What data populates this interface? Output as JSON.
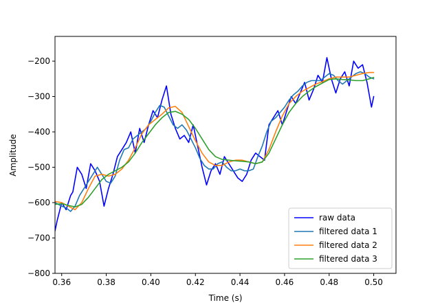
{
  "chart_data": {
    "type": "line",
    "xlabel": "Time (s)",
    "ylabel": "Amplitude",
    "xlim": [
      0.357,
      0.51
    ],
    "ylim": [
      -800,
      -130
    ],
    "x_ticks": [
      0.36,
      0.38,
      0.4,
      0.42,
      0.44,
      0.46,
      0.48,
      0.5
    ],
    "x_tick_labels": [
      "0.36",
      "0.38",
      "0.40",
      "0.42",
      "0.44",
      "0.46",
      "0.48",
      "0.50"
    ],
    "y_ticks": [
      -800,
      -700,
      -600,
      -500,
      -400,
      -300,
      -200
    ],
    "y_tick_labels": [
      "−800",
      "−700",
      "−600",
      "−500",
      "−400",
      "−300",
      "−200"
    ],
    "grid": false,
    "legend_position": "lower-right",
    "series": [
      {
        "name": "raw data",
        "color": "#0000ff",
        "x": [
          0.357,
          0.358,
          0.36,
          0.362,
          0.364,
          0.365,
          0.367,
          0.369,
          0.371,
          0.373,
          0.375,
          0.377,
          0.379,
          0.381,
          0.383,
          0.385,
          0.387,
          0.389,
          0.391,
          0.393,
          0.395,
          0.397,
          0.399,
          0.401,
          0.403,
          0.405,
          0.407,
          0.409,
          0.411,
          0.413,
          0.415,
          0.417,
          0.419,
          0.421,
          0.423,
          0.425,
          0.427,
          0.429,
          0.431,
          0.433,
          0.435,
          0.437,
          0.439,
          0.441,
          0.443,
          0.445,
          0.447,
          0.449,
          0.451,
          0.453,
          0.455,
          0.457,
          0.459,
          0.461,
          0.463,
          0.465,
          0.467,
          0.469,
          0.471,
          0.473,
          0.475,
          0.477,
          0.479,
          0.481,
          0.483,
          0.485,
          0.487,
          0.489,
          0.491,
          0.493,
          0.495,
          0.497,
          0.499,
          0.5
        ],
        "y": [
          -680,
          -650,
          -600,
          -620,
          -580,
          -570,
          -500,
          -520,
          -560,
          -490,
          -510,
          -540,
          -610,
          -560,
          -520,
          -470,
          -450,
          -430,
          -400,
          -460,
          -390,
          -430,
          -380,
          -340,
          -360,
          -310,
          -270,
          -350,
          -390,
          -420,
          -410,
          -430,
          -380,
          -440,
          -500,
          -550,
          -510,
          -490,
          -520,
          -470,
          -490,
          -510,
          -530,
          -540,
          -520,
          -480,
          -460,
          -470,
          -480,
          -380,
          -360,
          -340,
          -380,
          -340,
          -300,
          -320,
          -290,
          -260,
          -310,
          -280,
          -240,
          -260,
          -190,
          -250,
          -290,
          -250,
          -230,
          -270,
          -200,
          -220,
          -210,
          -260,
          -330,
          -300
        ]
      },
      {
        "name": "filtered data 1",
        "color": "#1f77b4",
        "x": [
          0.357,
          0.36,
          0.362,
          0.364,
          0.366,
          0.368,
          0.37,
          0.372,
          0.374,
          0.376,
          0.378,
          0.38,
          0.382,
          0.384,
          0.386,
          0.388,
          0.39,
          0.392,
          0.394,
          0.396,
          0.398,
          0.4,
          0.402,
          0.404,
          0.406,
          0.408,
          0.41,
          0.412,
          0.414,
          0.416,
          0.418,
          0.42,
          0.422,
          0.424,
          0.426,
          0.428,
          0.43,
          0.432,
          0.434,
          0.436,
          0.438,
          0.44,
          0.442,
          0.444,
          0.446,
          0.448,
          0.45,
          0.452,
          0.454,
          0.456,
          0.458,
          0.46,
          0.462,
          0.464,
          0.466,
          0.468,
          0.47,
          0.472,
          0.474,
          0.476,
          0.478,
          0.48,
          0.482,
          0.484,
          0.486,
          0.488,
          0.49,
          0.492,
          0.494,
          0.496,
          0.498,
          0.5
        ],
        "y": [
          -600,
          -610,
          -615,
          -625,
          -610,
          -580,
          -560,
          -540,
          -520,
          -500,
          -520,
          -540,
          -545,
          -525,
          -480,
          -450,
          -445,
          -420,
          -410,
          -400,
          -390,
          -370,
          -345,
          -325,
          -330,
          -355,
          -380,
          -390,
          -380,
          -395,
          -420,
          -445,
          -475,
          -495,
          -505,
          -505,
          -490,
          -485,
          -500,
          -510,
          -510,
          -505,
          -510,
          -510,
          -505,
          -470,
          -440,
          -400,
          -370,
          -360,
          -345,
          -330,
          -310,
          -295,
          -285,
          -270,
          -260,
          -255,
          -255,
          -255,
          -245,
          -235,
          -240,
          -255,
          -265,
          -255,
          -245,
          -235,
          -230,
          -235,
          -245,
          -250
        ]
      },
      {
        "name": "filtered data 2",
        "color": "#ff7f0e",
        "x": [
          0.357,
          0.36,
          0.363,
          0.366,
          0.369,
          0.372,
          0.375,
          0.378,
          0.381,
          0.384,
          0.387,
          0.39,
          0.393,
          0.396,
          0.399,
          0.402,
          0.405,
          0.408,
          0.411,
          0.414,
          0.417,
          0.42,
          0.423,
          0.426,
          0.429,
          0.432,
          0.435,
          0.438,
          0.441,
          0.444,
          0.447,
          0.45,
          0.453,
          0.456,
          0.459,
          0.462,
          0.465,
          0.468,
          0.471,
          0.474,
          0.477,
          0.48,
          0.483,
          0.486,
          0.489,
          0.492,
          0.495,
          0.498,
          0.5
        ],
        "y": [
          -597,
          -600,
          -610,
          -620,
          -600,
          -560,
          -525,
          -520,
          -525,
          -520,
          -505,
          -480,
          -445,
          -405,
          -380,
          -365,
          -350,
          -332,
          -328,
          -345,
          -385,
          -425,
          -460,
          -485,
          -495,
          -495,
          -485,
          -480,
          -480,
          -485,
          -490,
          -485,
          -450,
          -400,
          -355,
          -320,
          -300,
          -285,
          -275,
          -265,
          -258,
          -250,
          -245,
          -245,
          -245,
          -240,
          -235,
          -232,
          -232
        ]
      },
      {
        "name": "filtered data 3",
        "color": "#2ca02c",
        "x": [
          0.357,
          0.36,
          0.363,
          0.366,
          0.369,
          0.372,
          0.375,
          0.378,
          0.381,
          0.384,
          0.387,
          0.39,
          0.393,
          0.396,
          0.399,
          0.402,
          0.405,
          0.408,
          0.411,
          0.414,
          0.417,
          0.42,
          0.423,
          0.426,
          0.429,
          0.432,
          0.435,
          0.438,
          0.441,
          0.444,
          0.447,
          0.45,
          0.453,
          0.456,
          0.459,
          0.462,
          0.465,
          0.468,
          0.471,
          0.474,
          0.477,
          0.48,
          0.483,
          0.486,
          0.489,
          0.492,
          0.495,
          0.498,
          0.5
        ],
        "y": [
          -605,
          -603,
          -608,
          -612,
          -605,
          -585,
          -560,
          -535,
          -520,
          -510,
          -500,
          -485,
          -460,
          -430,
          -405,
          -380,
          -360,
          -345,
          -342,
          -350,
          -365,
          -390,
          -420,
          -450,
          -470,
          -478,
          -480,
          -482,
          -483,
          -485,
          -490,
          -485,
          -460,
          -420,
          -380,
          -345,
          -320,
          -300,
          -285,
          -272,
          -262,
          -252,
          -250,
          -252,
          -253,
          -255,
          -255,
          -250,
          -246
        ]
      }
    ]
  }
}
